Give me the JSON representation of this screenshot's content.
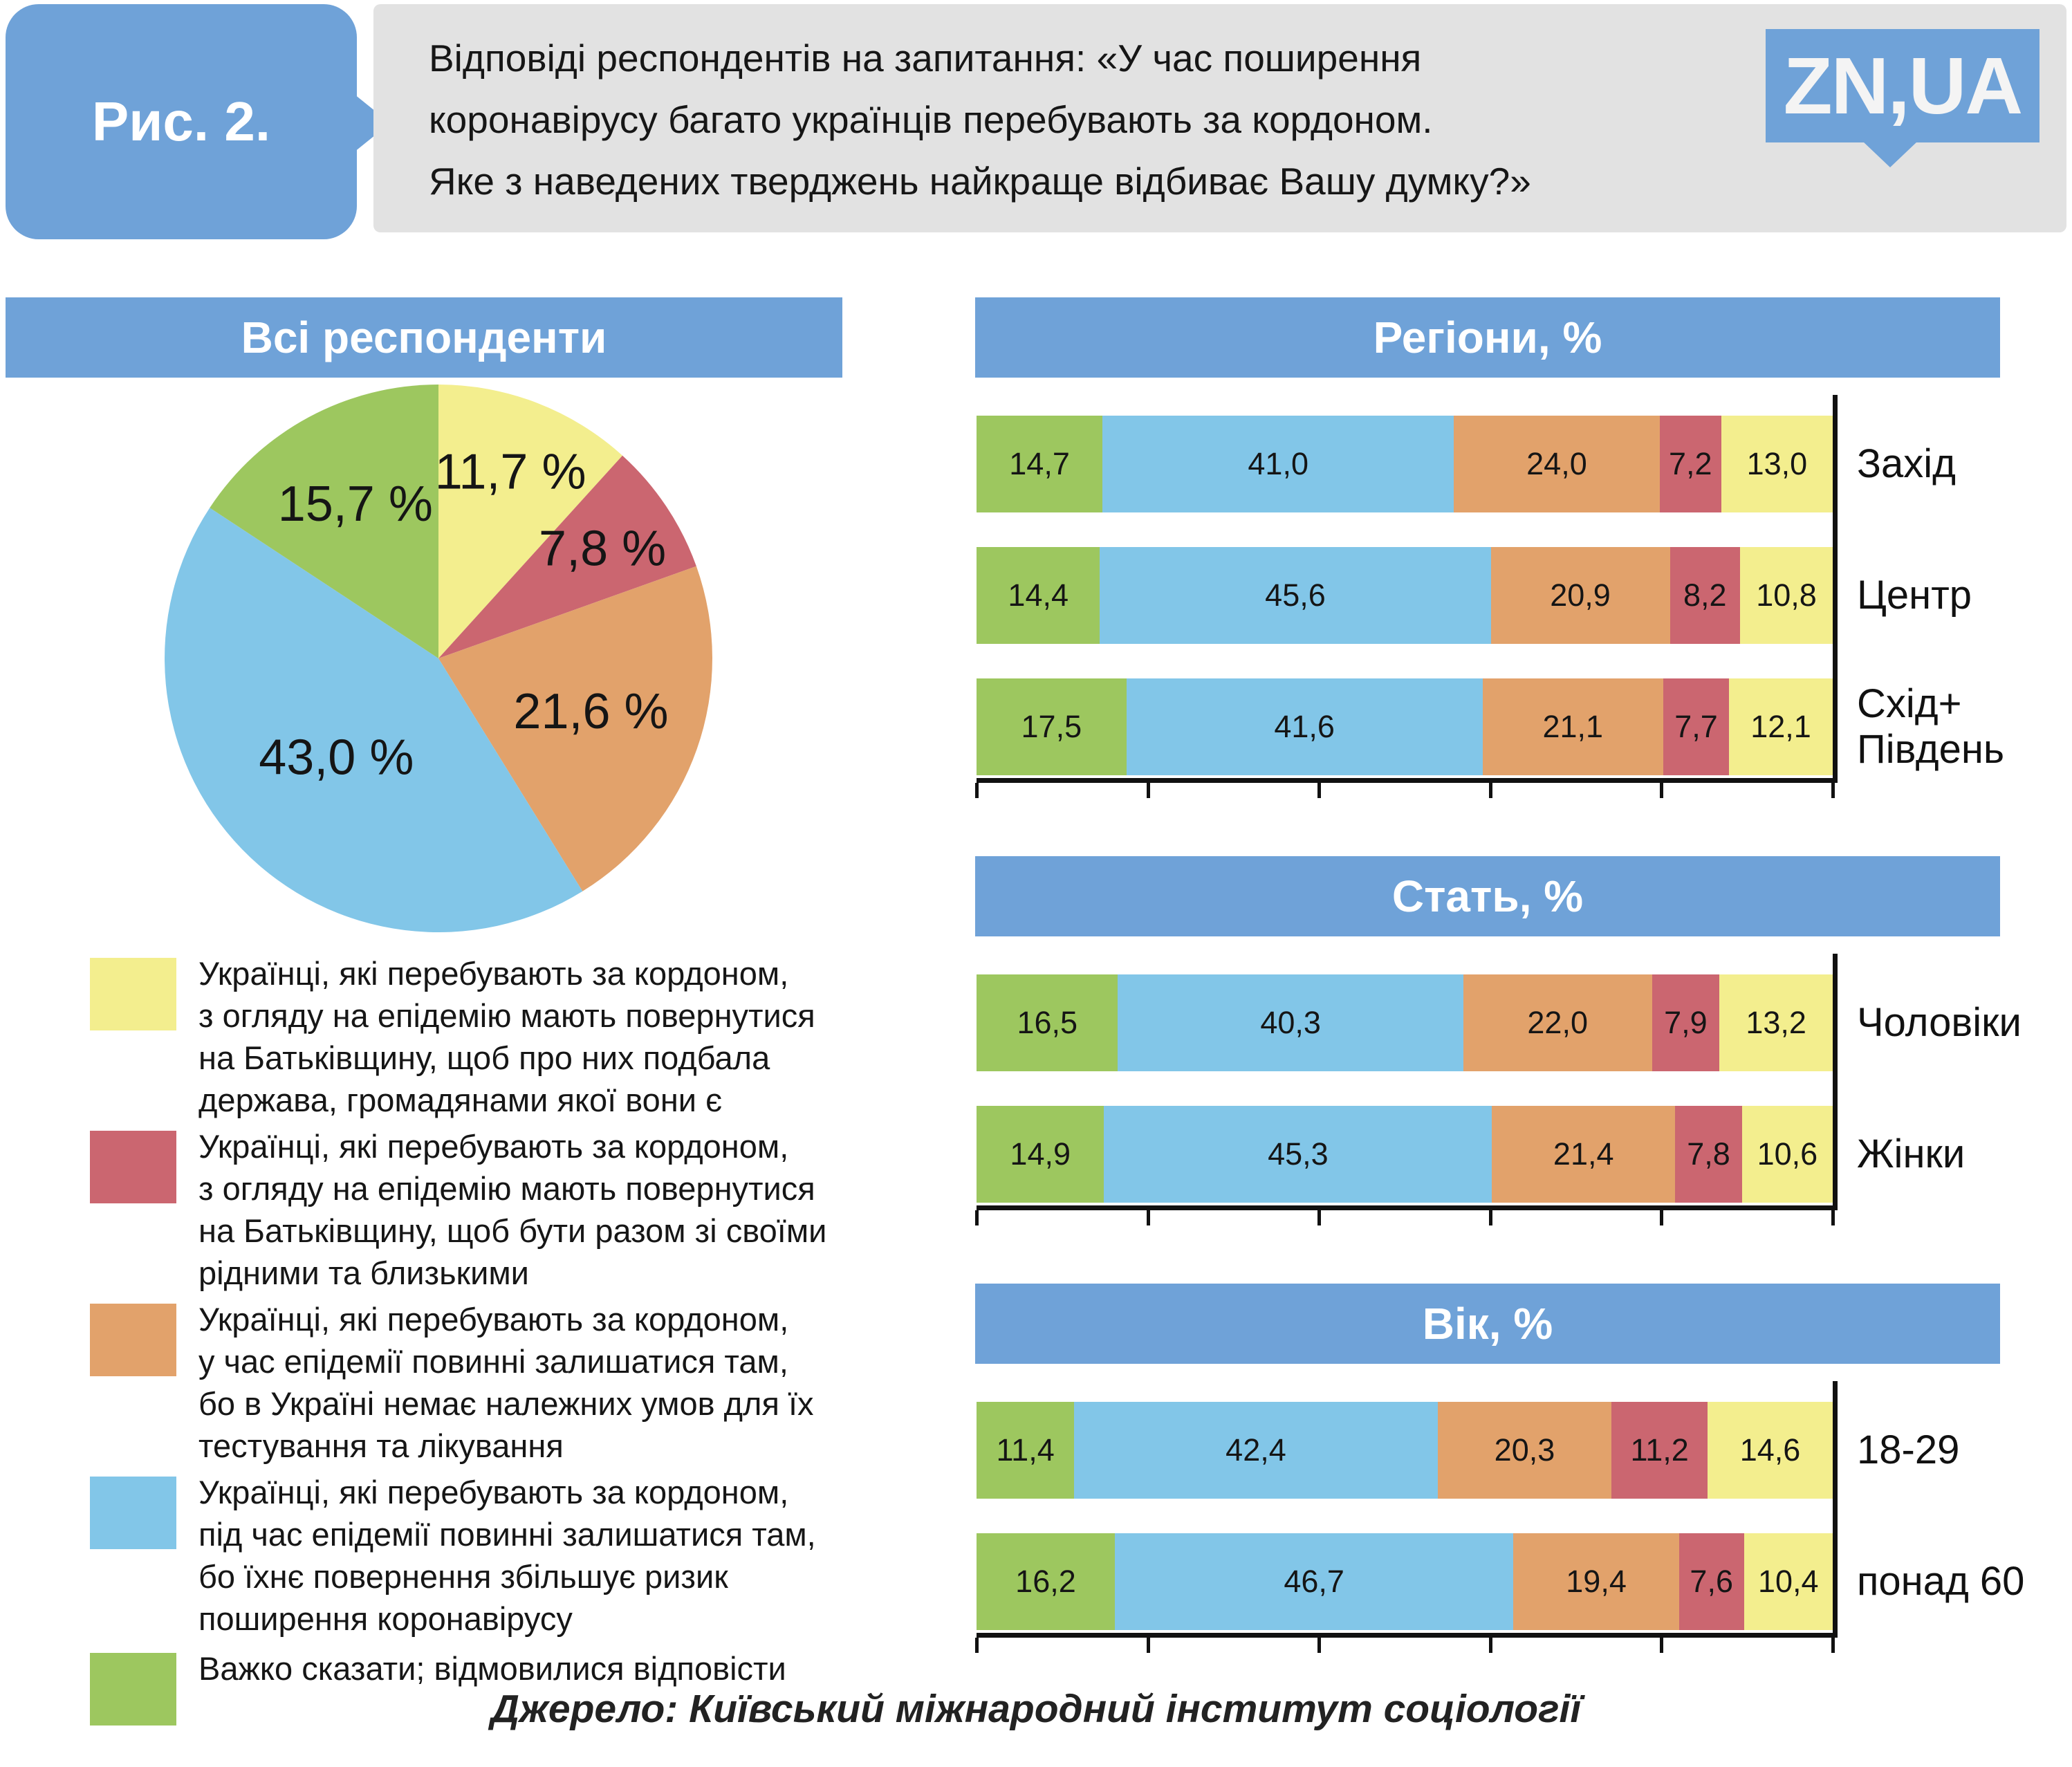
{
  "figure_label": "Рис. 2.",
  "title": "Відповіді респондентів на запитання: «У час поширення\n коронавірусу багато українців перебувають за кордоном.\nЯке з наведених тверджень найкраще відбиває Вашу думку?»",
  "logo": {
    "text": "ZN,UA"
  },
  "source": "Джерело: Київський міжнародний інститут соціології",
  "colors": {
    "accent_blue": "#6fa2d8",
    "panel_gray": "#e2e2e2",
    "yellow": "#f3ee8e",
    "red": "#cb6670",
    "orange": "#e2a26b",
    "blue": "#82c6e8",
    "green": "#9dc75f",
    "text_dark": "#151515",
    "white": "#ffffff"
  },
  "chart_data": [
    {
      "type": "pie",
      "title": "Всі респонденти",
      "slice_colors": [
        "yellow",
        "red",
        "orange",
        "blue",
        "green"
      ],
      "values": [
        11.7,
        7.8,
        21.6,
        43.0,
        15.7
      ],
      "labels": [
        "11,7 %",
        "7,8 %",
        "21,6 %",
        "43,0 %",
        "15,7 %"
      ],
      "start_angle_deg": 0,
      "direction": "clockwise",
      "label_radius": [
        0.73,
        0.72,
        0.59,
        0.52,
        0.64
      ],
      "legend": [
        {
          "color_key": "yellow",
          "text": "Українці, які перебувають за кордоном,\nз огляду на епідемію мають повернутися\nна Батьківщину, щоб про них подбала\nдержава, громадянами якої вони є"
        },
        {
          "color_key": "red",
          "text": "Українці, які перебувають за кордоном,\nз огляду на епідемію мають повернутися\nна Батьківщину, щоб бути разом зі своїми\nрідними та близькими"
        },
        {
          "color_key": "orange",
          "text": "Українці, які перебувають за кордоном,\nу час епідемії повинні залишатися там,\nбо в Україні немає належних умов для їх\nтестування та лікування"
        },
        {
          "color_key": "blue",
          "text": "Українці, які перебувають за кордоном,\nпід час епідемії повинні залишатися там,\nбо їхнє повернення збільшує ризик\nпоширення коронавірусу"
        },
        {
          "color_key": "green",
          "text": "Важко сказати; відмовилися відповісти"
        }
      ]
    },
    {
      "type": "bar",
      "stacked": true,
      "orientation": "horizontal",
      "title": "Регіони, %",
      "segment_order": [
        "green",
        "blue",
        "orange",
        "red",
        "yellow"
      ],
      "categories": [
        "Захід",
        "Центр",
        "Схід+\nПівдень"
      ],
      "rows": [
        [
          14.7,
          41.0,
          24.0,
          7.2,
          13.0
        ],
        [
          14.4,
          45.6,
          20.9,
          8.2,
          10.8
        ],
        [
          17.5,
          41.6,
          21.1,
          7.7,
          12.1
        ]
      ],
      "row_labels": [
        [
          "14,7",
          "41,0",
          "24,0",
          "7,2",
          "13,0"
        ],
        [
          "14,4",
          "45,6",
          "20,9",
          "8,2",
          "10,8"
        ],
        [
          "17,5",
          "41,6",
          "21,1",
          "7,7",
          "12,1"
        ]
      ],
      "xlim": [
        0,
        100
      ],
      "ticks_percent": [
        0,
        20,
        40,
        60,
        80,
        100
      ],
      "axis_side": "right"
    },
    {
      "type": "bar",
      "stacked": true,
      "orientation": "horizontal",
      "title": "Стать, %",
      "segment_order": [
        "green",
        "blue",
        "orange",
        "red",
        "yellow"
      ],
      "categories": [
        "Чоловіки",
        "Жінки"
      ],
      "rows": [
        [
          16.5,
          40.3,
          22.0,
          7.9,
          13.2
        ],
        [
          14.9,
          45.3,
          21.4,
          7.8,
          10.6
        ]
      ],
      "row_labels": [
        [
          "16,5",
          "40,3",
          "22,0",
          "7,9",
          "13,2"
        ],
        [
          "14,9",
          "45,3",
          "21,4",
          "7,8",
          "10,6"
        ]
      ],
      "xlim": [
        0,
        100
      ],
      "ticks_percent": [
        0,
        20,
        40,
        60,
        80,
        100
      ],
      "axis_side": "right"
    },
    {
      "type": "bar",
      "stacked": true,
      "orientation": "horizontal",
      "title": "Вік, %",
      "segment_order": [
        "green",
        "blue",
        "orange",
        "red",
        "yellow"
      ],
      "categories": [
        "18-29",
        "понад 60"
      ],
      "rows": [
        [
          11.4,
          42.4,
          20.3,
          11.2,
          14.6
        ],
        [
          16.2,
          46.7,
          19.4,
          7.6,
          10.4
        ]
      ],
      "row_labels": [
        [
          "11,4",
          "42,4",
          "20,3",
          "11,2",
          "14,6"
        ],
        [
          "16,2",
          "46,7",
          "19,4",
          "7,6",
          "10,4"
        ]
      ],
      "xlim": [
        0,
        100
      ],
      "ticks_percent": [
        0,
        20,
        40,
        60,
        80,
        100
      ],
      "axis_side": "right"
    }
  ]
}
